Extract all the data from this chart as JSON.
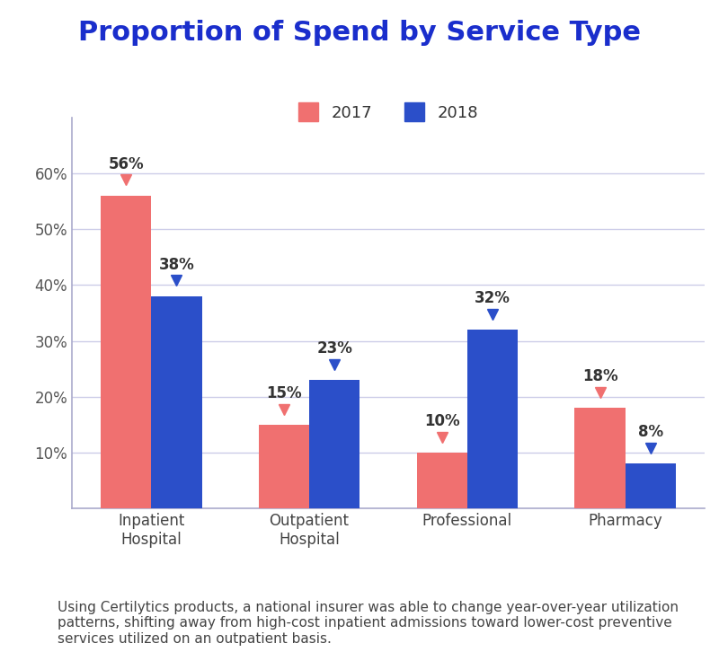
{
  "title": "Proportion of Spend by Service Type",
  "categories": [
    "Inpatient\nHospital",
    "Outpatient\nHospital",
    "Professional",
    "Pharmacy"
  ],
  "values_2017": [
    56,
    15,
    10,
    18
  ],
  "values_2018": [
    38,
    23,
    32,
    8
  ],
  "labels_2017": [
    "56%",
    "15%",
    "10%",
    "18%"
  ],
  "labels_2018": [
    "38%",
    "23%",
    "32%",
    "8%"
  ],
  "color_2017": "#F07070",
  "color_2018": "#2B4FC9",
  "bar_width": 0.32,
  "ylim": [
    0,
    70
  ],
  "yticks": [
    10,
    20,
    30,
    40,
    50,
    60
  ],
  "ytick_labels": [
    "10%",
    "20%",
    "30%",
    "40%",
    "50%",
    "60%"
  ],
  "legend_labels": [
    "2017",
    "2018"
  ],
  "footnote": "Using Certilytics products, a national insurer was able to change year-over-year utilization\npatterns, shifting away from high-cost inpatient admissions toward lower-cost preventive\nservices utilized on an outpatient basis.",
  "title_color": "#1A2ECC",
  "title_fontsize": 22,
  "tick_label_fontsize": 12,
  "annotation_fontsize": 12,
  "legend_fontsize": 13,
  "footnote_fontsize": 11,
  "background_color": "#FFFFFF",
  "grid_color": "#CCCCE8",
  "spine_color": "#AAAACC"
}
